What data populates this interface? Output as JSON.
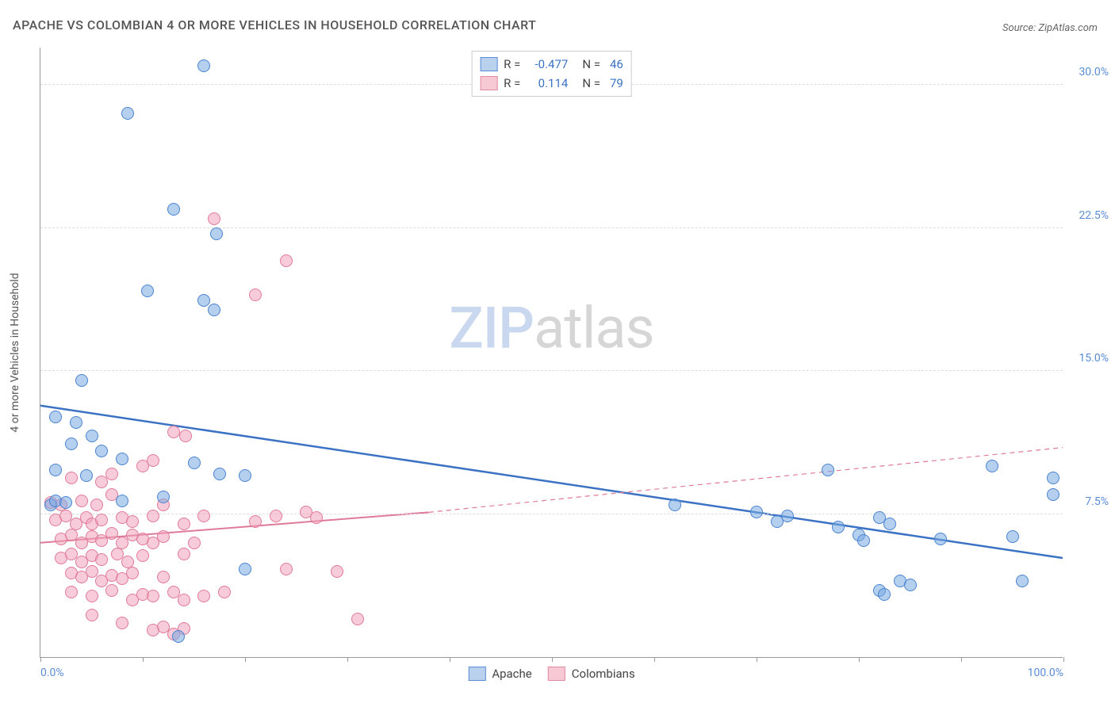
{
  "title": "APACHE VS COLOMBIAN 4 OR MORE VEHICLES IN HOUSEHOLD CORRELATION CHART",
  "source": "Source: ZipAtlas.com",
  "ylabel": "4 or more Vehicles in Household",
  "watermark": {
    "part1": "ZIP",
    "part2": "atlas"
  },
  "colors": {
    "blue_fill": "#b9d1ed",
    "blue_stroke": "#5b8dd6",
    "pink_fill": "#f6c9d4",
    "pink_stroke": "#e38aa3",
    "blue_line": "#3b72c4",
    "pink_line": "#e07a9a",
    "grid": "#dddddd",
    "axis": "#999999",
    "text": "#555555",
    "value_text": "#3b72c4",
    "background": "#ffffff"
  },
  "xlim": [
    0,
    100
  ],
  "ylim": [
    0,
    32
  ],
  "yticks": [
    {
      "value": 7.5,
      "label": "7.5%"
    },
    {
      "value": 15.0,
      "label": "15.0%"
    },
    {
      "value": 22.5,
      "label": "22.5%"
    },
    {
      "value": 30.0,
      "label": "30.0%"
    }
  ],
  "xticks_minor": [
    0,
    10,
    20,
    30,
    40,
    50,
    60,
    70,
    80,
    90,
    100
  ],
  "xticks_labels": [
    {
      "value": 0,
      "label": "0.0%"
    },
    {
      "value": 100,
      "label": "100.0%"
    }
  ],
  "legend_top": [
    {
      "color": "blue",
      "r_label": "R =",
      "r_value": "-0.477",
      "n_label": "N =",
      "n_value": "46"
    },
    {
      "color": "pink",
      "r_label": "R =",
      "r_value": "0.114",
      "n_label": "N =",
      "n_value": "79"
    }
  ],
  "legend_bottom": [
    {
      "color": "blue",
      "label": "Apache"
    },
    {
      "color": "pink",
      "label": "Colombians"
    }
  ],
  "trend_lines": {
    "blue": {
      "x1": 0,
      "y1": 13.2,
      "x2": 100,
      "y2": 5.2,
      "dashed": false,
      "stroke_width": 2.5,
      "color": "#3b72c4"
    },
    "pink_solid": {
      "x1": 0,
      "y1": 6.0,
      "x2": 38,
      "y2": 7.6,
      "dashed": false,
      "stroke_width": 2,
      "color": "#e07a9a"
    },
    "pink_dash": {
      "x1": 38,
      "y1": 7.6,
      "x2": 100,
      "y2": 11.0,
      "dashed": true,
      "stroke_width": 1.2,
      "color": "#e07a9a"
    }
  },
  "point_radius": 8,
  "series": {
    "blue": [
      {
        "x": 16,
        "y": 31
      },
      {
        "x": 8.5,
        "y": 28.5
      },
      {
        "x": 13,
        "y": 23.5
      },
      {
        "x": 17.2,
        "y": 22.2
      },
      {
        "x": 10.5,
        "y": 19.2
      },
      {
        "x": 16,
        "y": 18.7
      },
      {
        "x": 17,
        "y": 18.2
      },
      {
        "x": 4,
        "y": 14.5
      },
      {
        "x": 1.5,
        "y": 12.6
      },
      {
        "x": 3.5,
        "y": 12.3
      },
      {
        "x": 5,
        "y": 11.6
      },
      {
        "x": 3,
        "y": 11.2
      },
      {
        "x": 6,
        "y": 10.8
      },
      {
        "x": 8,
        "y": 10.4
      },
      {
        "x": 15,
        "y": 10.2
      },
      {
        "x": 1.5,
        "y": 9.8
      },
      {
        "x": 4.5,
        "y": 9.5
      },
      {
        "x": 17.5,
        "y": 9.6
      },
      {
        "x": 20,
        "y": 9.5
      },
      {
        "x": 1,
        "y": 8.0
      },
      {
        "x": 1.5,
        "y": 8.2
      },
      {
        "x": 8,
        "y": 8.2
      },
      {
        "x": 12,
        "y": 8.4
      },
      {
        "x": 2.5,
        "y": 8.1
      },
      {
        "x": 20,
        "y": 4.6
      },
      {
        "x": 13.5,
        "y": 1.1
      },
      {
        "x": 62,
        "y": 8.0
      },
      {
        "x": 70,
        "y": 7.6
      },
      {
        "x": 72,
        "y": 7.1
      },
      {
        "x": 73,
        "y": 7.4
      },
      {
        "x": 77,
        "y": 9.8
      },
      {
        "x": 80,
        "y": 6.4
      },
      {
        "x": 80.5,
        "y": 6.1
      },
      {
        "x": 82,
        "y": 7.3
      },
      {
        "x": 82,
        "y": 3.5
      },
      {
        "x": 82.5,
        "y": 3.3
      },
      {
        "x": 83,
        "y": 7.0
      },
      {
        "x": 84,
        "y": 4.0
      },
      {
        "x": 88,
        "y": 6.2
      },
      {
        "x": 93,
        "y": 10.0
      },
      {
        "x": 95,
        "y": 6.3
      },
      {
        "x": 96,
        "y": 4.0
      },
      {
        "x": 99,
        "y": 8.5
      },
      {
        "x": 99,
        "y": 9.4
      },
      {
        "x": 78,
        "y": 6.8
      },
      {
        "x": 85,
        "y": 3.8
      }
    ],
    "pink": [
      {
        "x": 17,
        "y": 23
      },
      {
        "x": 24,
        "y": 20.8
      },
      {
        "x": 21,
        "y": 19.0
      },
      {
        "x": 13,
        "y": 11.8
      },
      {
        "x": 14.2,
        "y": 11.6
      },
      {
        "x": 10,
        "y": 10.0
      },
      {
        "x": 11,
        "y": 10.3
      },
      {
        "x": 3,
        "y": 9.4
      },
      {
        "x": 6,
        "y": 9.2
      },
      {
        "x": 7,
        "y": 9.6
      },
      {
        "x": 1,
        "y": 8.1
      },
      {
        "x": 2,
        "y": 8.0
      },
      {
        "x": 4,
        "y": 8.2
      },
      {
        "x": 5.5,
        "y": 8.0
      },
      {
        "x": 7,
        "y": 8.5
      },
      {
        "x": 12,
        "y": 8.0
      },
      {
        "x": 11,
        "y": 7.4
      },
      {
        "x": 1.5,
        "y": 7.2
      },
      {
        "x": 2.5,
        "y": 7.4
      },
      {
        "x": 3.5,
        "y": 7.0
      },
      {
        "x": 4.5,
        "y": 7.3
      },
      {
        "x": 5,
        "y": 7.0
      },
      {
        "x": 6,
        "y": 7.2
      },
      {
        "x": 8,
        "y": 7.3
      },
      {
        "x": 9,
        "y": 7.1
      },
      {
        "x": 14,
        "y": 7.0
      },
      {
        "x": 16,
        "y": 7.4
      },
      {
        "x": 21,
        "y": 7.1
      },
      {
        "x": 23,
        "y": 7.4
      },
      {
        "x": 26,
        "y": 7.6
      },
      {
        "x": 27,
        "y": 7.3
      },
      {
        "x": 2,
        "y": 6.2
      },
      {
        "x": 3,
        "y": 6.4
      },
      {
        "x": 4,
        "y": 6.0
      },
      {
        "x": 5,
        "y": 6.3
      },
      {
        "x": 6,
        "y": 6.1
      },
      {
        "x": 7,
        "y": 6.5
      },
      {
        "x": 8,
        "y": 6.0
      },
      {
        "x": 9,
        "y": 6.4
      },
      {
        "x": 10,
        "y": 6.2
      },
      {
        "x": 11,
        "y": 6.0
      },
      {
        "x": 12,
        "y": 6.3
      },
      {
        "x": 15,
        "y": 6.0
      },
      {
        "x": 2,
        "y": 5.2
      },
      {
        "x": 3,
        "y": 5.4
      },
      {
        "x": 4,
        "y": 5.0
      },
      {
        "x": 5,
        "y": 5.3
      },
      {
        "x": 6,
        "y": 5.1
      },
      {
        "x": 7.5,
        "y": 5.4
      },
      {
        "x": 8.5,
        "y": 5.0
      },
      {
        "x": 10,
        "y": 5.3
      },
      {
        "x": 14,
        "y": 5.4
      },
      {
        "x": 24,
        "y": 4.6
      },
      {
        "x": 29,
        "y": 4.5
      },
      {
        "x": 3,
        "y": 4.4
      },
      {
        "x": 4,
        "y": 4.2
      },
      {
        "x": 5,
        "y": 4.5
      },
      {
        "x": 6,
        "y": 4.0
      },
      {
        "x": 7,
        "y": 4.3
      },
      {
        "x": 8,
        "y": 4.1
      },
      {
        "x": 9,
        "y": 4.4
      },
      {
        "x": 12,
        "y": 4.2
      },
      {
        "x": 3,
        "y": 3.4
      },
      {
        "x": 5,
        "y": 3.2
      },
      {
        "x": 7,
        "y": 3.5
      },
      {
        "x": 9,
        "y": 3.0
      },
      {
        "x": 10,
        "y": 3.3
      },
      {
        "x": 11,
        "y": 3.2
      },
      {
        "x": 13,
        "y": 3.4
      },
      {
        "x": 14,
        "y": 3.0
      },
      {
        "x": 16,
        "y": 3.2
      },
      {
        "x": 18,
        "y": 3.4
      },
      {
        "x": 5,
        "y": 2.2
      },
      {
        "x": 8,
        "y": 1.8
      },
      {
        "x": 11,
        "y": 1.4
      },
      {
        "x": 12,
        "y": 1.6
      },
      {
        "x": 13,
        "y": 1.2
      },
      {
        "x": 14,
        "y": 1.5
      },
      {
        "x": 31,
        "y": 2.0
      }
    ]
  }
}
